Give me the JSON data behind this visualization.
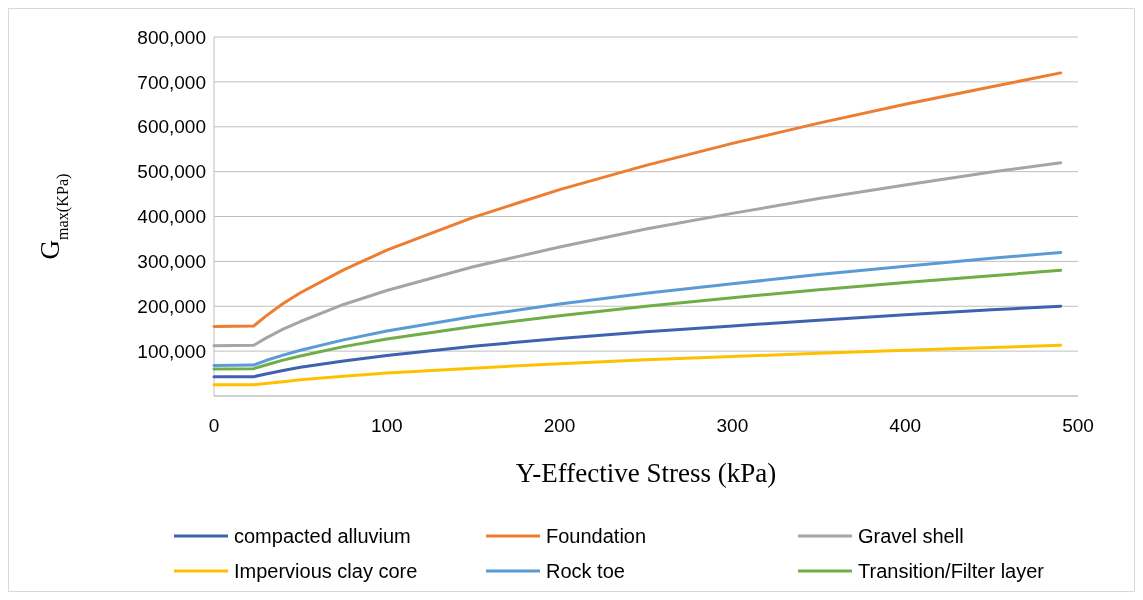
{
  "chart_data": {
    "type": "line",
    "xlabel": "Y-Effective Stress (kPa)",
    "ylabel": "G$_{max(KPa)}$",
    "x": [
      0,
      23,
      30,
      40,
      50,
      75,
      100,
      150,
      200,
      250,
      300,
      350,
      400,
      450,
      490
    ],
    "xlim": [
      0,
      500
    ],
    "xticks": [
      0,
      100,
      200,
      300,
      400,
      500
    ],
    "ylim": [
      0,
      800000
    ],
    "yticks": [
      {
        "value": 0,
        "label": null
      },
      {
        "value": 100000,
        "label": "100,000"
      },
      {
        "value": 200000,
        "label": "200,000"
      },
      {
        "value": 300000,
        "label": "300,000"
      },
      {
        "value": 400000,
        "label": "400,000"
      },
      {
        "value": 500000,
        "label": "500,000"
      },
      {
        "value": 600000,
        "label": "600,000"
      },
      {
        "value": 700000,
        "label": "700,000"
      },
      {
        "value": 800000,
        "label": "800,000"
      }
    ],
    "grid": "y",
    "legend": "bottom",
    "marker": "none",
    "line_style": "solid",
    "series": [
      {
        "name": "compacted alluvium",
        "color": "#3f62b0",
        "values": [
          43000,
          43000,
          49000,
          57000,
          64000,
          78000,
          90000,
          111000,
          128000,
          143000,
          156000,
          169000,
          181000,
          192000,
          200000
        ]
      },
      {
        "name": "Foundation",
        "color": "#ed7d31",
        "values": [
          155000,
          156000,
          178000,
          206000,
          230000,
          281000,
          325000,
          398000,
          460000,
          514000,
          563000,
          608000,
          650000,
          689000,
          720000
        ]
      },
      {
        "name": "Gravel shell",
        "color": "#a5a5a5",
        "values": [
          112000,
          113000,
          129000,
          149000,
          166000,
          204000,
          235000,
          288000,
          332000,
          372000,
          407000,
          440000,
          470000,
          499000,
          520000
        ]
      },
      {
        "name": "Impervious clay core",
        "color": "#ffc000",
        "values": [
          25000,
          25000,
          28000,
          32000,
          36000,
          44000,
          51000,
          62000,
          72000,
          81000,
          88000,
          95000,
          102000,
          108000,
          113000
        ]
      },
      {
        "name": "Rock toe",
        "color": "#5b9bd5",
        "values": [
          68000,
          69000,
          79000,
          91000,
          102000,
          125000,
          145000,
          177000,
          205000,
          229000,
          250000,
          271000,
          289000,
          307000,
          320000
        ]
      },
      {
        "name": "Transition/Filter layer",
        "color": "#70ad47",
        "values": [
          60000,
          61000,
          69000,
          80000,
          89000,
          110000,
          127000,
          155000,
          179000,
          200000,
          219000,
          237000,
          253000,
          268000,
          280000
        ]
      }
    ]
  }
}
